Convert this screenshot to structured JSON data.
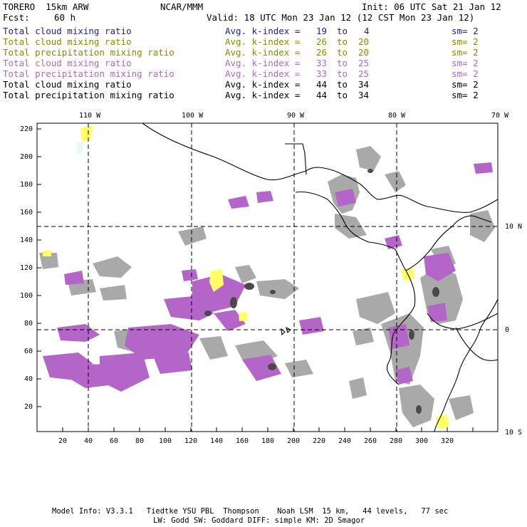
{
  "header": {
    "model": "TORERO  15km ARW",
    "org": "NCAR/MMM",
    "init": "Init: 06 UTC Sat 21 Jan 12",
    "fcst_label": "Fcst:",
    "fcst_value": "60 h",
    "valid": "Valid: 18 UTC Mon 23 Jan 12 (12 CST Mon 23 Jan 12)"
  },
  "legend": [
    {
      "field": "Total cloud mixing ratio",
      "kindex": "Avg. k-index =",
      "from": "19",
      "to": "to",
      "end": "4",
      "sm": "sm= 2",
      "color": "#1a1ab0"
    },
    {
      "field": "Total cloud mixing ratio",
      "kindex": "Avg. k-index =",
      "from": "26",
      "to": "to",
      "end": "20",
      "sm": "sm= 2",
      "color": "#8a8a00"
    },
    {
      "field": "Total precipitation mixing ratio",
      "kindex": "Avg. k-index =",
      "from": "26",
      "to": "to",
      "end": "20",
      "sm": "sm= 2",
      "color": "#8a8a00"
    },
    {
      "field": "Total cloud mixing ratio",
      "kindex": "Avg. k-index =",
      "from": "33",
      "to": "to",
      "end": "25",
      "sm": "sm= 2",
      "color": "#b266c8"
    },
    {
      "field": "Total precipitation mixing ratio",
      "kindex": "Avg. k-index =",
      "from": "33",
      "to": "to",
      "end": "25",
      "sm": "sm= 2",
      "color": "#b266c8"
    },
    {
      "field": "Total cloud mixing ratio",
      "kindex": "Avg. k-index =",
      "from": "44",
      "to": "to",
      "end": "34",
      "sm": "sm= 2",
      "color": "#000000"
    },
    {
      "field": "Total precipitation mixing ratio",
      "kindex": "Avg. k-index =",
      "from": "44",
      "to": "to",
      "end": "34",
      "sm": "sm= 2",
      "color": "#000000"
    }
  ],
  "map": {
    "top_lon_labels": [
      "110 W",
      "100 W",
      "90 W",
      "80 W",
      "70 W"
    ],
    "right_lat_labels": [
      "10 N",
      "0",
      "10 S"
    ],
    "left_y_ticks": [
      "220",
      "200",
      "180",
      "160",
      "140",
      "120",
      "100",
      "80",
      "60",
      "40",
      "20"
    ],
    "bottom_x_ticks": [
      "20",
      "40",
      "60",
      "80",
      "100",
      "120",
      "140",
      "160",
      "180",
      "200",
      "220",
      "240",
      "260",
      "280",
      "300",
      "320"
    ]
  },
  "footer": {
    "line1": "Model Info: V3.3.1   Tiedtke YSU PBL  Thompson    Noah LSM  15 km,   44 levels,   77 sec",
    "line2": "LW: Godd SW: Goddard DIFF: simple KM: 2D Smagor"
  }
}
